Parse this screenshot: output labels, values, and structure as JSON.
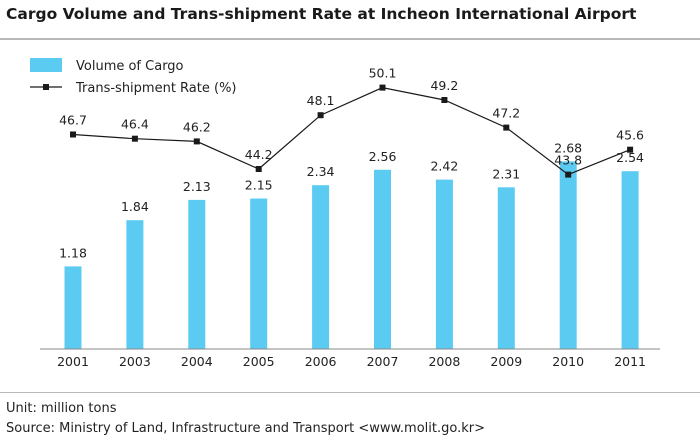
{
  "chart_data": {
    "type": "bar",
    "title": "Cargo Volume and Trans-shipment Rate at Incheon International Airport",
    "categories": [
      "2001",
      "2003",
      "2004",
      "2005",
      "2006",
      "2007",
      "2008",
      "2009",
      "2010",
      "2011"
    ],
    "series": [
      {
        "name": "Volume of Cargo",
        "type": "bar",
        "values": [
          1.18,
          1.84,
          2.13,
          2.15,
          2.34,
          2.56,
          2.42,
          2.31,
          2.68,
          2.54
        ],
        "labels": [
          "1.18",
          "1.84",
          "2.13",
          "2.15",
          "2.34",
          "2.56",
          "2.42",
          "2.31",
          "2.68",
          "2.54"
        ],
        "color": "#5ccbf2"
      },
      {
        "name": "Trans-shipment Rate (%)",
        "type": "line",
        "values": [
          46.7,
          46.4,
          46.2,
          44.2,
          48.1,
          50.1,
          49.2,
          47.2,
          43.8,
          45.6
        ],
        "labels": [
          "46.7",
          "46.4",
          "46.2",
          "44.2",
          "48.1",
          "50.1",
          "49.2",
          "47.2",
          "43.8",
          "45.6"
        ],
        "color": "#1a1a1a"
      }
    ],
    "ylim_bar": [
      0,
      3.5
    ],
    "ylim_line": [
      30,
      55
    ],
    "legend_position": "top-left",
    "grid": false
  },
  "footer": {
    "unit": "Unit: million tons",
    "source": "Source: Ministry of Land, Infrastructure and Transport <www.molit.go.kr>"
  }
}
